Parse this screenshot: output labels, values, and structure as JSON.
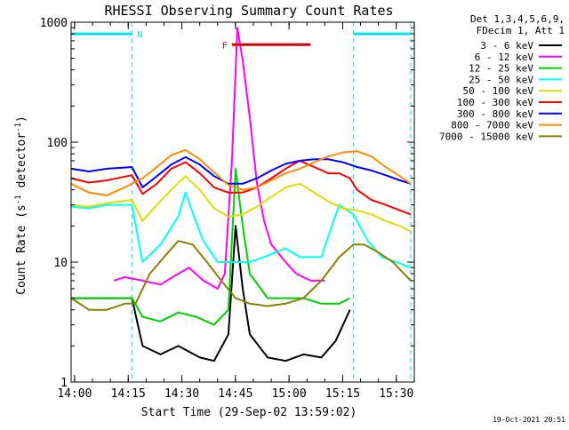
{
  "chart_data": {
    "type": "line",
    "title": "RHESSI Observing Summary Count Rates",
    "xlabel": "Start Time (29-Sep-02 13:59:02)",
    "ylabel": "Count Rate (s⁻¹ detector⁻¹)",
    "yscale": "log",
    "ylim": [
      1,
      1000
    ],
    "xlim_minutes": [
      0,
      96
    ],
    "x_tick_labels": [
      "14:00",
      "14:15",
      "14:30",
      "14:45",
      "15:00",
      "15:15",
      "15:30"
    ],
    "x_tick_minutes": [
      0.97,
      15.97,
      30.97,
      45.97,
      60.97,
      75.97,
      90.97
    ],
    "y_tick_labels": [
      "1",
      "10",
      "100",
      "1000"
    ],
    "y_tick_values": [
      1,
      10,
      100,
      1000
    ],
    "legend_header": [
      "Det 1,3,4,5,6,9,",
      "FDecim 1, Att 1"
    ],
    "legend_position": "right",
    "timestamp": "19-Oct-2021 20:51",
    "bars": [
      {
        "label": "N",
        "color": "#00e5e5",
        "y": 800,
        "segments": [
          [
            0,
            17
          ]
        ]
      },
      {
        "label": "",
        "color": "#00e5e5",
        "y": 800,
        "segments": [
          [
            79,
            95
          ]
        ]
      },
      {
        "label": "F",
        "color": "#e00000",
        "y": 650,
        "segments": [
          [
            45,
            67
          ]
        ]
      }
    ],
    "night_bounds_minutes": [
      17,
      79,
      95
    ],
    "series": [
      {
        "name": "3 - 6 keV",
        "color": "#000000",
        "points": [
          [
            0,
            5
          ],
          [
            17,
            5
          ],
          [
            20,
            2
          ],
          [
            25,
            1.7
          ],
          [
            30,
            2
          ],
          [
            36,
            1.6
          ],
          [
            40,
            1.5
          ],
          [
            44,
            2.5
          ],
          [
            46,
            20
          ],
          [
            48,
            6
          ],
          [
            50,
            2.5
          ],
          [
            55,
            1.6
          ],
          [
            60,
            1.5
          ],
          [
            65,
            1.7
          ],
          [
            70,
            1.6
          ],
          [
            74,
            2.2
          ],
          [
            78,
            4
          ]
        ]
      },
      {
        "name": "6 - 12 keV",
        "color": "#ff00ff",
        "points": [
          [
            12,
            7
          ],
          [
            15,
            7.5
          ],
          [
            20,
            7
          ],
          [
            25,
            6.5
          ],
          [
            30,
            8
          ],
          [
            33,
            9
          ],
          [
            37,
            7
          ],
          [
            41,
            6
          ],
          [
            43,
            8
          ],
          [
            45,
            70
          ],
          [
            46.5,
            900
          ],
          [
            48,
            480
          ],
          [
            50,
            160
          ],
          [
            52,
            45
          ],
          [
            54,
            22
          ],
          [
            56,
            14
          ],
          [
            60,
            10
          ],
          [
            63,
            8
          ],
          [
            67,
            7
          ],
          [
            71,
            7
          ]
        ]
      },
      {
        "name": "12 - 25 keV",
        "color": "#00d000",
        "points": [
          [
            0,
            5
          ],
          [
            17,
            5
          ],
          [
            20,
            3.5
          ],
          [
            25,
            3.2
          ],
          [
            30,
            3.8
          ],
          [
            35,
            3.5
          ],
          [
            40,
            3
          ],
          [
            44,
            4
          ],
          [
            46,
            60
          ],
          [
            48,
            20
          ],
          [
            50,
            8
          ],
          [
            55,
            5
          ],
          [
            60,
            5
          ],
          [
            65,
            5
          ],
          [
            70,
            4.5
          ],
          [
            75,
            4.5
          ],
          [
            78,
            5
          ]
        ]
      },
      {
        "name": "25 - 50 keV",
        "color": "#00ffff",
        "points": [
          [
            0,
            29
          ],
          [
            5,
            28
          ],
          [
            10,
            30
          ],
          [
            17,
            30
          ],
          [
            20,
            10
          ],
          [
            25,
            14
          ],
          [
            30,
            24
          ],
          [
            32,
            38
          ],
          [
            34,
            26
          ],
          [
            37,
            15
          ],
          [
            41,
            10
          ],
          [
            44,
            10
          ],
          [
            46,
            10
          ],
          [
            50,
            10
          ],
          [
            54,
            11
          ],
          [
            57,
            12
          ],
          [
            60,
            13
          ],
          [
            64,
            11
          ],
          [
            70,
            11
          ],
          [
            75,
            30
          ],
          [
            79,
            25
          ],
          [
            83,
            15
          ],
          [
            87,
            11
          ],
          [
            91,
            10
          ],
          [
            95,
            9
          ]
        ]
      },
      {
        "name": "50 - 100 keV",
        "color": "#dddd00",
        "points": [
          [
            0,
            30
          ],
          [
            5,
            29
          ],
          [
            10,
            31
          ],
          [
            17,
            33
          ],
          [
            20,
            22
          ],
          [
            24,
            30
          ],
          [
            28,
            40
          ],
          [
            32,
            52
          ],
          [
            36,
            40
          ],
          [
            40,
            28
          ],
          [
            44,
            24
          ],
          [
            48,
            25
          ],
          [
            52,
            29
          ],
          [
            56,
            35
          ],
          [
            60,
            42
          ],
          [
            64,
            45
          ],
          [
            68,
            38
          ],
          [
            72,
            32
          ],
          [
            76,
            28
          ],
          [
            80,
            27
          ],
          [
            84,
            25
          ],
          [
            88,
            22
          ],
          [
            92,
            20
          ],
          [
            95,
            18
          ]
        ]
      },
      {
        "name": "100 - 300 keV",
        "color": "#ff0000",
        "points": [
          [
            0,
            50
          ],
          [
            5,
            46
          ],
          [
            10,
            48
          ],
          [
            17,
            53
          ],
          [
            20,
            37
          ],
          [
            24,
            45
          ],
          [
            28,
            60
          ],
          [
            32,
            68
          ],
          [
            36,
            55
          ],
          [
            40,
            42
          ],
          [
            44,
            38
          ],
          [
            48,
            38
          ],
          [
            52,
            42
          ],
          [
            56,
            50
          ],
          [
            60,
            60
          ],
          [
            64,
            70
          ],
          [
            68,
            62
          ],
          [
            72,
            55
          ],
          [
            75,
            55
          ],
          [
            78,
            50
          ],
          [
            80,
            40
          ],
          [
            84,
            33
          ],
          [
            88,
            30
          ],
          [
            92,
            27
          ],
          [
            95,
            25
          ]
        ]
      },
      {
        "name": "300 - 800 keV",
        "color": "#0000ff",
        "points": [
          [
            0,
            60
          ],
          [
            5,
            57
          ],
          [
            10,
            60
          ],
          [
            17,
            62
          ],
          [
            20,
            42
          ],
          [
            24,
            52
          ],
          [
            28,
            65
          ],
          [
            32,
            75
          ],
          [
            36,
            65
          ],
          [
            40,
            52
          ],
          [
            44,
            45
          ],
          [
            48,
            45
          ],
          [
            52,
            50
          ],
          [
            56,
            58
          ],
          [
            60,
            66
          ],
          [
            64,
            70
          ],
          [
            68,
            72
          ],
          [
            72,
            72
          ],
          [
            76,
            68
          ],
          [
            80,
            62
          ],
          [
            84,
            58
          ],
          [
            88,
            53
          ],
          [
            92,
            48
          ],
          [
            95,
            45
          ]
        ]
      },
      {
        "name": "800 - 7000 keV",
        "color": "#ff8c00",
        "points": [
          [
            0,
            45
          ],
          [
            5,
            38
          ],
          [
            10,
            36
          ],
          [
            15,
            42
          ],
          [
            20,
            50
          ],
          [
            24,
            62
          ],
          [
            28,
            78
          ],
          [
            32,
            86
          ],
          [
            36,
            72
          ],
          [
            40,
            56
          ],
          [
            44,
            44
          ],
          [
            48,
            40
          ],
          [
            52,
            42
          ],
          [
            56,
            48
          ],
          [
            60,
            55
          ],
          [
            64,
            60
          ],
          [
            68,
            68
          ],
          [
            72,
            76
          ],
          [
            76,
            82
          ],
          [
            80,
            84
          ],
          [
            84,
            76
          ],
          [
            88,
            62
          ],
          [
            92,
            52
          ],
          [
            95,
            45
          ]
        ]
      },
      {
        "name": "7000 - 15000 keV",
        "color": "#8b8000",
        "points": [
          [
            0,
            5
          ],
          [
            5,
            4
          ],
          [
            10,
            4
          ],
          [
            15,
            4.5
          ],
          [
            18,
            4.5
          ],
          [
            22,
            8
          ],
          [
            26,
            11
          ],
          [
            30,
            15
          ],
          [
            34,
            14
          ],
          [
            38,
            10
          ],
          [
            42,
            7
          ],
          [
            46,
            5
          ],
          [
            50,
            4.5
          ],
          [
            55,
            4.3
          ],
          [
            60,
            4.5
          ],
          [
            65,
            5
          ],
          [
            70,
            7
          ],
          [
            75,
            11
          ],
          [
            79,
            14
          ],
          [
            82,
            14
          ],
          [
            86,
            12
          ],
          [
            90,
            10
          ],
          [
            95,
            7
          ]
        ]
      }
    ]
  }
}
